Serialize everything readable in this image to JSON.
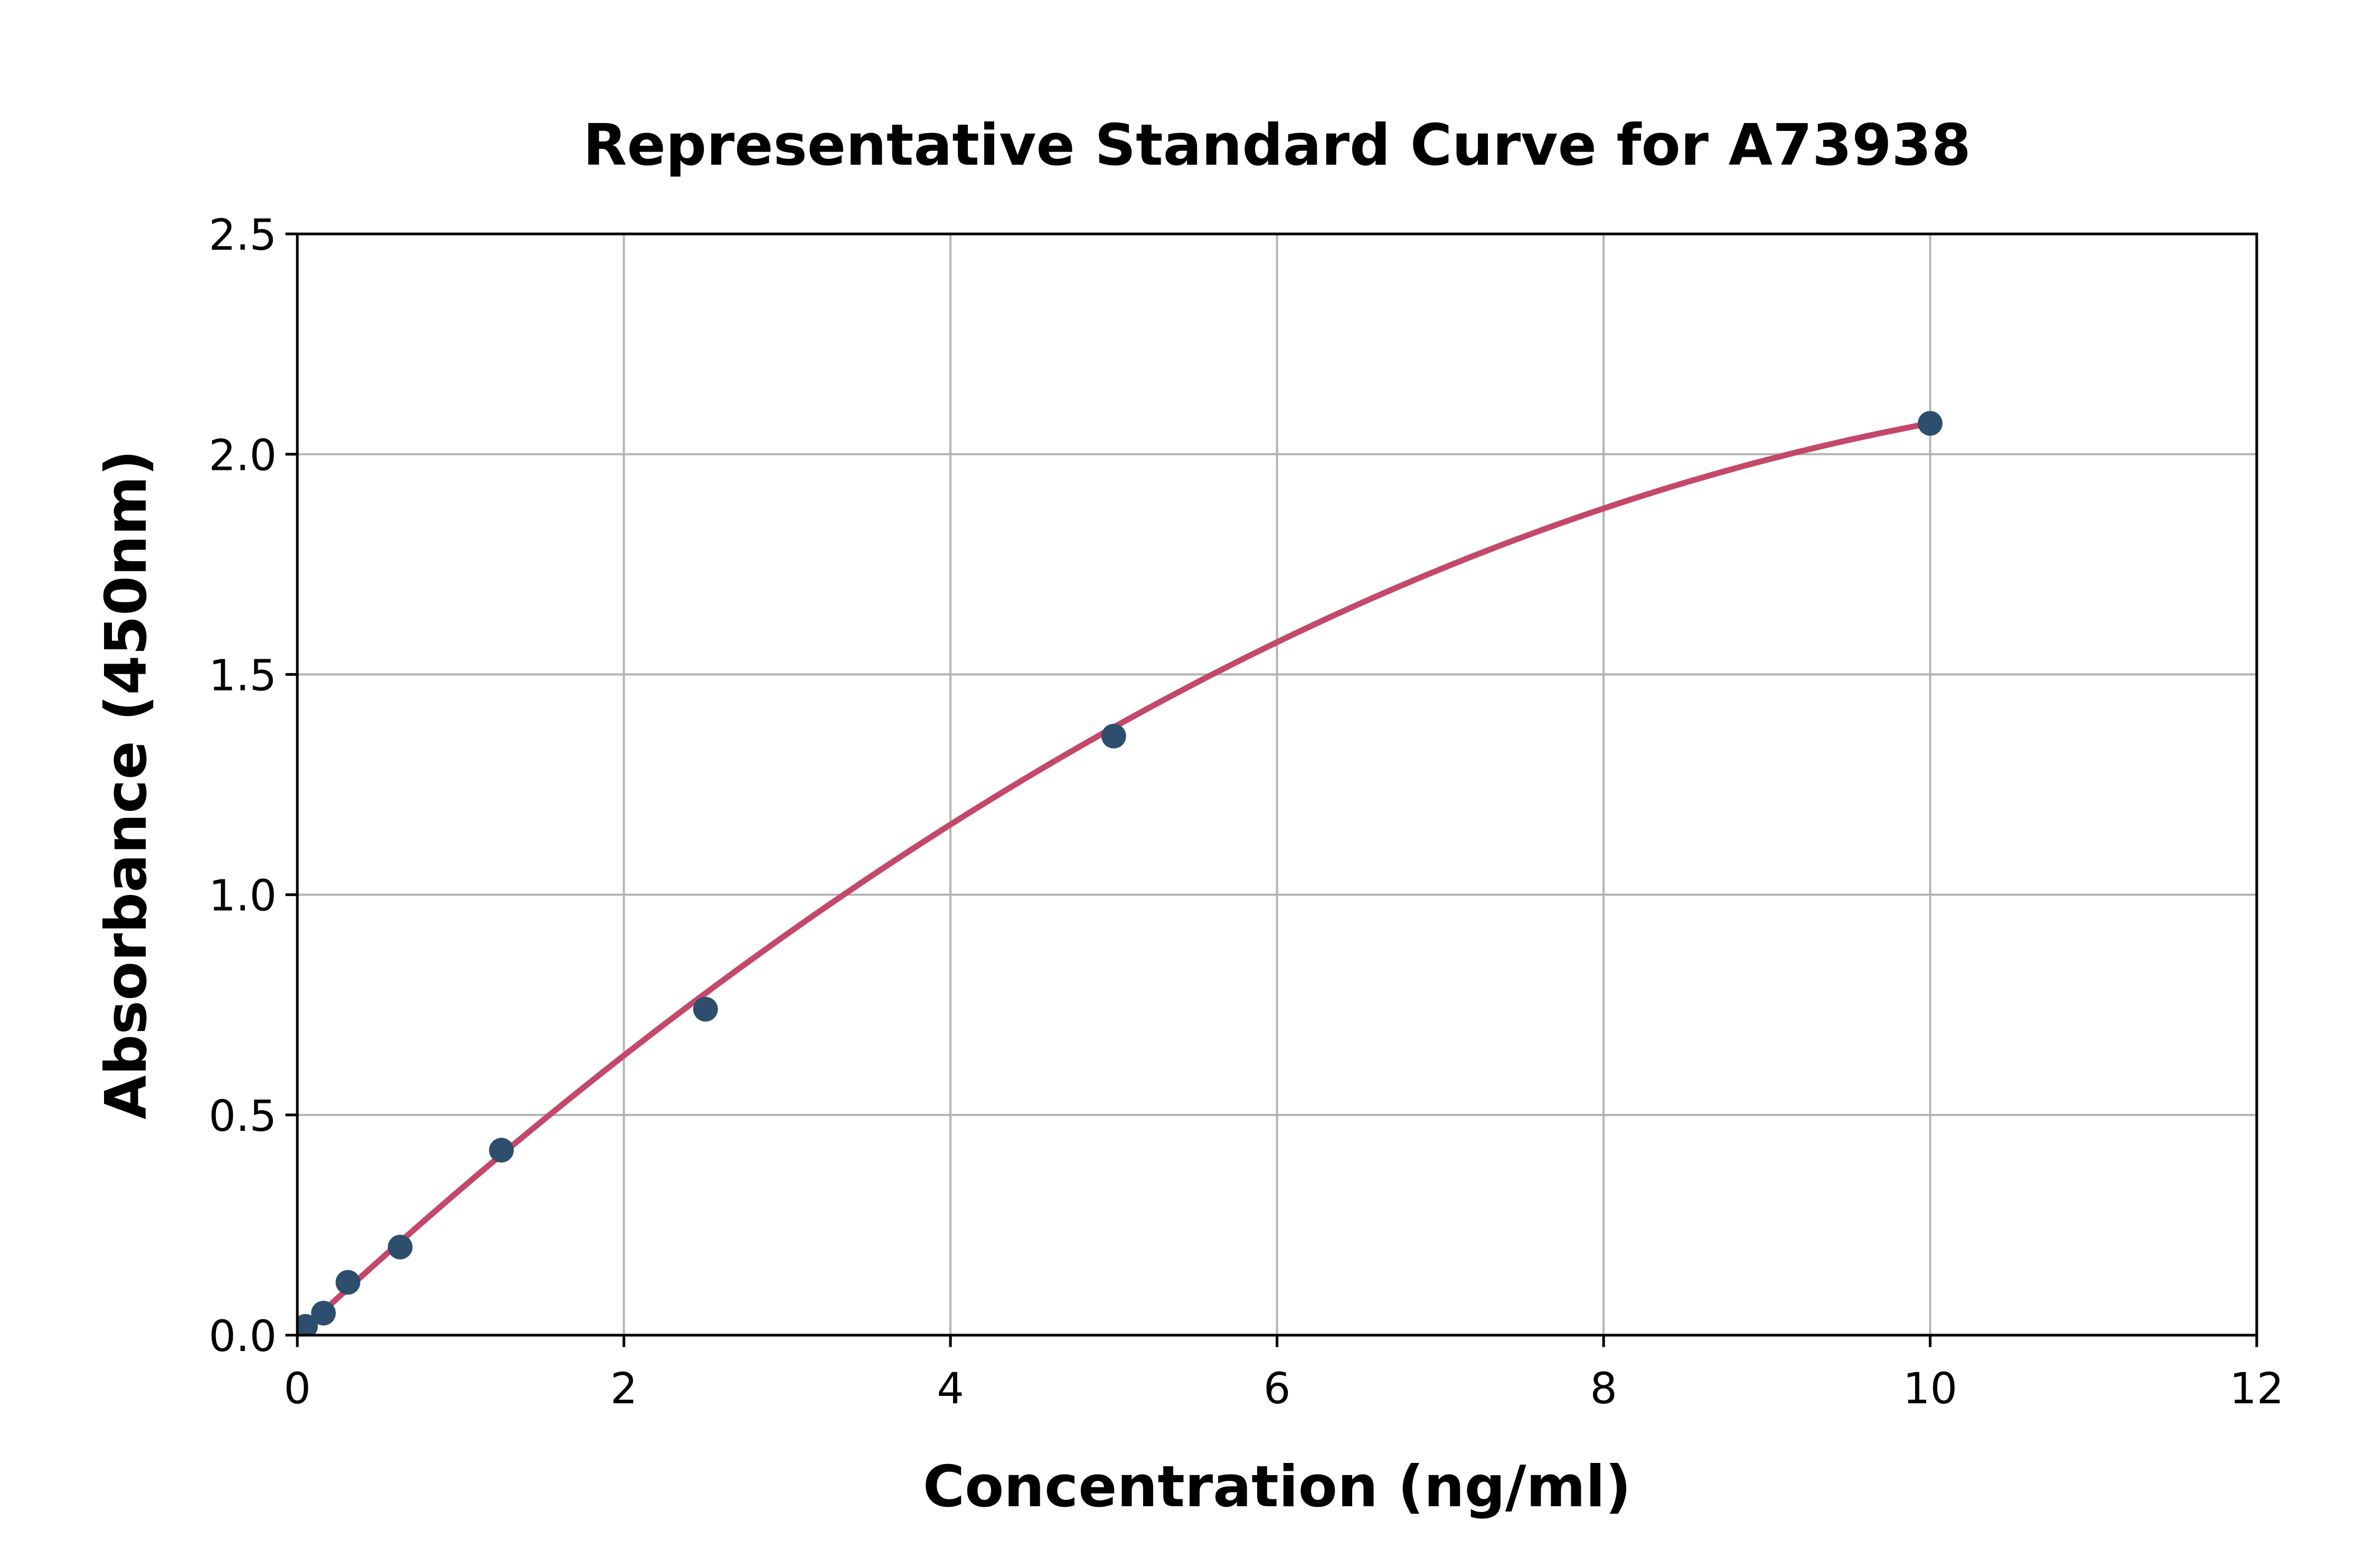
{
  "chart_data": {
    "type": "scatter",
    "title": "Representative Standard Curve for A73938",
    "xlabel": "Concentration (ng/ml)",
    "ylabel": "Absorbance (450nm)",
    "xlim": [
      0,
      12
    ],
    "ylim": [
      0,
      2.5
    ],
    "xtick_labels": [
      "0",
      "2",
      "4",
      "6",
      "8",
      "10",
      "12"
    ],
    "xtick_values": [
      0,
      2,
      4,
      6,
      8,
      10,
      12
    ],
    "ytick_labels": [
      "0.0",
      "0.5",
      "1.0",
      "1.5",
      "2.0",
      "2.5"
    ],
    "ytick_values": [
      0,
      0.5,
      1.0,
      1.5,
      2.0,
      2.5
    ],
    "grid": true,
    "grid_x_at": [
      2,
      4,
      6,
      8,
      10
    ],
    "grid_y_at": [
      0.5,
      1.0,
      1.5,
      2.0
    ],
    "legend": null,
    "series": [
      {
        "name": "standard-points",
        "type": "scatter",
        "color": "#2e4e6d",
        "points": [
          {
            "x": 0.05,
            "y": 0.02
          },
          {
            "x": 0.16,
            "y": 0.05
          },
          {
            "x": 0.31,
            "y": 0.12
          },
          {
            "x": 0.63,
            "y": 0.2
          },
          {
            "x": 1.25,
            "y": 0.42
          },
          {
            "x": 2.5,
            "y": 0.74
          },
          {
            "x": 5.0,
            "y": 1.36
          },
          {
            "x": 10.0,
            "y": 2.07
          }
        ]
      },
      {
        "name": "fitted-curve",
        "type": "line",
        "color": "#c4486a",
        "fit_model": "quadratic",
        "fit_coeffs": {
          "a": 0.345,
          "b": -0.0138
        },
        "x_range": [
          0.03,
          10
        ]
      }
    ],
    "colors": {
      "marker": "#2e4e6d",
      "curve": "#c4486a",
      "grid": "#b2b2b2",
      "axis": "#000000",
      "background": "#ffffff"
    }
  }
}
